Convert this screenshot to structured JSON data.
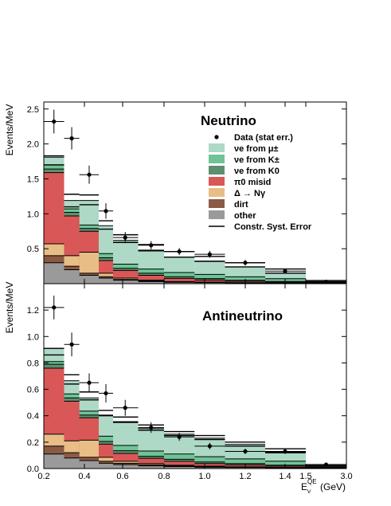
{
  "chart_data": {
    "type": "area",
    "x_edges": [
      0.2,
      0.3,
      0.375,
      0.475,
      0.55,
      0.675,
      0.8,
      0.95,
      1.1,
      1.3,
      1.5,
      3.0
    ],
    "xlim": [
      0.2,
      3.0
    ],
    "xlabel": "Eν QE (GeV)",
    "x_ticks": [
      "0.2",
      "0.4",
      "0.6",
      "0.8",
      "1.0",
      "1.2",
      "1.4",
      "1.5",
      "3.0"
    ],
    "x_tick_values": [
      0.2,
      0.4,
      0.6,
      0.8,
      1.0,
      1.2,
      1.4,
      1.5,
      3.0
    ],
    "legend_position": "top-right",
    "legend": [
      "Data (stat err.)",
      "νe from μ±",
      "νe from K±",
      "νe from K0",
      "π0 misid",
      "Δ → Nγ",
      "dirt",
      "other",
      "Constr. Syst. Error"
    ],
    "colors": {
      "other": "#9a9a9a",
      "dirt": "#8b5a44",
      "delta": "#e8bd86",
      "pi0": "#d95757",
      "nue_K0": "#5e8e6e",
      "nue_Kpm": "#6ec496",
      "nue_mu": "#aed9c7",
      "data": "#000000",
      "error": "#000000"
    },
    "panels": [
      {
        "name": "Neutrino",
        "ylabel": "Events/MeV",
        "ylim": [
          0,
          2.6
        ],
        "y_ticks": [
          "0.5",
          "1.0",
          "1.5",
          "2.0",
          "2.5"
        ],
        "y_tick_values": [
          0.5,
          1.0,
          1.5,
          2.0,
          2.5
        ],
        "series": [
          {
            "key": "other",
            "values": [
              0.3,
              0.2,
              0.12,
              0.08,
              0.05,
              0.03,
              0.02,
              0.015,
              0.01,
              0.007,
              0.005
            ]
          },
          {
            "key": "dirt",
            "values": [
              0.1,
              0.05,
              0.03,
              0.02,
              0.01,
              0.01,
              0.005,
              0.004,
              0.002,
              0.001,
              0.001
            ]
          },
          {
            "key": "delta",
            "values": [
              0.17,
              0.15,
              0.3,
              0.05,
              0.02,
              0.01,
              0.005,
              0.004,
              0.002,
              0.001,
              0.001
            ]
          },
          {
            "key": "pi0",
            "values": [
              1.02,
              0.57,
              0.3,
              0.18,
              0.11,
              0.07,
              0.045,
              0.03,
              0.02,
              0.012,
              0.004
            ]
          },
          {
            "key": "nue_K0",
            "values": [
              0.05,
              0.05,
              0.04,
              0.04,
              0.03,
              0.03,
              0.025,
              0.02,
              0.015,
              0.01,
              0.005
            ]
          },
          {
            "key": "nue_Kpm",
            "values": [
              0.06,
              0.05,
              0.05,
              0.06,
              0.06,
              0.06,
              0.06,
              0.06,
              0.05,
              0.04,
              0.01
            ]
          },
          {
            "key": "nue_mu",
            "values": [
              0.11,
              0.12,
              0.35,
              0.4,
              0.34,
              0.27,
              0.22,
              0.19,
              0.14,
              0.08,
              0.005
            ]
          }
        ],
        "error_band": [
          [
            1.7,
            1.83
          ],
          [
            1.1,
            1.28
          ],
          [
            1.13,
            1.27
          ],
          [
            0.78,
            0.9
          ],
          [
            0.59,
            0.7
          ],
          [
            0.47,
            0.56
          ],
          [
            0.38,
            0.46
          ],
          [
            0.32,
            0.39
          ],
          [
            0.24,
            0.3
          ],
          [
            0.15,
            0.21
          ],
          [
            0.025,
            0.045
          ]
        ],
        "data_points": [
          {
            "x": 0.25,
            "y": 2.32,
            "err": 0.17
          },
          {
            "x": 0.3375,
            "y": 2.08,
            "err": 0.16
          },
          {
            "x": 0.425,
            "y": 1.56,
            "err": 0.13
          },
          {
            "x": 0.5125,
            "y": 1.04,
            "err": 0.11
          },
          {
            "x": 0.6125,
            "y": 0.66,
            "err": 0.08
          },
          {
            "x": 0.7375,
            "y": 0.55,
            "err": 0.06
          },
          {
            "x": 0.875,
            "y": 0.46,
            "err": 0.05
          },
          {
            "x": 1.025,
            "y": 0.42,
            "err": 0.05
          },
          {
            "x": 1.2,
            "y": 0.3,
            "err": 0.04
          },
          {
            "x": 1.4,
            "y": 0.18,
            "err": 0.03
          },
          {
            "x": 2.25,
            "y": 0.028,
            "err": 0.006
          }
        ]
      },
      {
        "name": "Antineutrino",
        "ylabel": "Events/MeV",
        "ylim": [
          0,
          1.4
        ],
        "y_ticks": [
          "0.0",
          "0.2",
          "0.4",
          "0.6",
          "0.8",
          "1.0",
          "1.2"
        ],
        "y_tick_values": [
          0.0,
          0.2,
          0.4,
          0.6,
          0.8,
          1.0,
          1.2
        ],
        "series": [
          {
            "key": "other",
            "values": [
              0.11,
              0.08,
              0.06,
              0.04,
              0.03,
              0.02,
              0.015,
              0.01,
              0.008,
              0.005,
              0.003
            ]
          },
          {
            "key": "dirt",
            "values": [
              0.06,
              0.04,
              0.025,
              0.015,
              0.01,
              0.008,
              0.005,
              0.004,
              0.003,
              0.002,
              0.001
            ]
          },
          {
            "key": "delta",
            "values": [
              0.09,
              0.09,
              0.13,
              0.03,
              0.015,
              0.01,
              0.005,
              0.004,
              0.002,
              0.001,
              0.001
            ]
          },
          {
            "key": "pi0",
            "values": [
              0.5,
              0.3,
              0.17,
              0.1,
              0.06,
              0.04,
              0.03,
              0.02,
              0.015,
              0.01,
              0.003
            ]
          },
          {
            "key": "nue_K0",
            "values": [
              0.03,
              0.025,
              0.02,
              0.02,
              0.02,
              0.015,
              0.015,
              0.012,
              0.01,
              0.008,
              0.003
            ]
          },
          {
            "key": "nue_Kpm",
            "values": [
              0.02,
              0.03,
              0.03,
              0.04,
              0.04,
              0.04,
              0.04,
              0.04,
              0.035,
              0.03,
              0.008
            ]
          },
          {
            "key": "nue_mu",
            "values": [
              0.1,
              0.1,
              0.1,
              0.16,
              0.18,
              0.17,
              0.15,
              0.14,
              0.11,
              0.07,
              0.004
            ]
          }
        ],
        "error_band": [
          [
            0.86,
            0.91
          ],
          [
            0.64,
            0.71
          ],
          [
            0.52,
            0.58
          ],
          [
            0.4,
            0.44
          ],
          [
            0.35,
            0.39
          ],
          [
            0.29,
            0.33
          ],
          [
            0.25,
            0.28
          ],
          [
            0.22,
            0.25
          ],
          [
            0.17,
            0.2
          ],
          [
            0.12,
            0.15
          ],
          [
            0.02,
            0.03
          ]
        ],
        "data_points": [
          {
            "x": 0.25,
            "y": 1.22,
            "err": 0.09
          },
          {
            "x": 0.3375,
            "y": 0.94,
            "err": 0.09
          },
          {
            "x": 0.425,
            "y": 0.65,
            "err": 0.07
          },
          {
            "x": 0.5125,
            "y": 0.57,
            "err": 0.07
          },
          {
            "x": 0.6125,
            "y": 0.46,
            "err": 0.06
          },
          {
            "x": 0.7375,
            "y": 0.31,
            "err": 0.04
          },
          {
            "x": 0.875,
            "y": 0.24,
            "err": 0.03
          },
          {
            "x": 1.025,
            "y": 0.17,
            "err": 0.025
          },
          {
            "x": 1.2,
            "y": 0.13,
            "err": 0.02
          },
          {
            "x": 1.4,
            "y": 0.13,
            "err": 0.02
          },
          {
            "x": 2.25,
            "y": 0.03,
            "err": 0.006
          }
        ]
      }
    ]
  }
}
